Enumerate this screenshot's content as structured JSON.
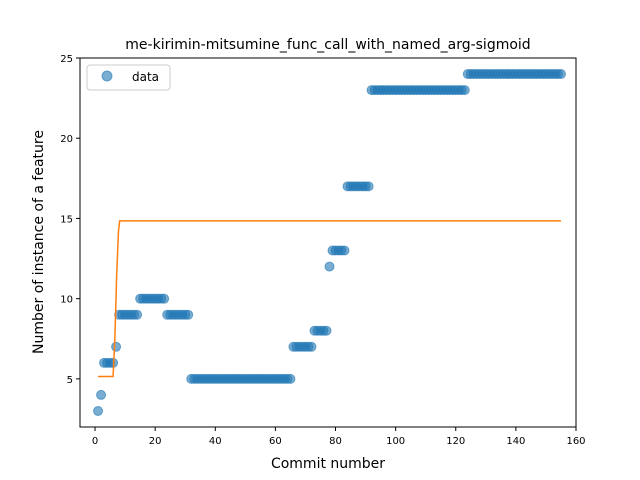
{
  "chart_data": {
    "type": "scatter",
    "title": "me-kirimin-mitsumine_func_call_with_named_arg-sigmoid",
    "xlabel": "Commit number",
    "ylabel": "Number of instance of a feature",
    "xlim": [
      -5,
      160
    ],
    "ylim": [
      2,
      25
    ],
    "xticks": [
      0,
      20,
      40,
      60,
      80,
      100,
      120,
      140,
      160
    ],
    "yticks": [
      5,
      10,
      15,
      20,
      25
    ],
    "grid": false,
    "legend": {
      "position": "top-left",
      "entries": [
        "data"
      ]
    },
    "colors": {
      "scatter": "#1f77b4",
      "fit": "#ff7f0e"
    },
    "series": [
      {
        "name": "data",
        "kind": "scatter",
        "segments": [
          {
            "x_start": 1,
            "x_end": 1,
            "y": 3
          },
          {
            "x_start": 2,
            "x_end": 2,
            "y": 4
          },
          {
            "x_start": 3,
            "x_end": 6,
            "y": 6
          },
          {
            "x_start": 7,
            "x_end": 7,
            "y": 7
          },
          {
            "x_start": 8,
            "x_end": 14,
            "y": 9
          },
          {
            "x_start": 15,
            "x_end": 23,
            "y": 10
          },
          {
            "x_start": 24,
            "x_end": 31,
            "y": 9
          },
          {
            "x_start": 32,
            "x_end": 65,
            "y": 5
          },
          {
            "x_start": 66,
            "x_end": 72,
            "y": 7
          },
          {
            "x_start": 73,
            "x_end": 77,
            "y": 8
          },
          {
            "x_start": 78,
            "x_end": 78,
            "y": 12
          },
          {
            "x_start": 79,
            "x_end": 83,
            "y": 13
          },
          {
            "x_start": 84,
            "x_end": 91,
            "y": 17
          },
          {
            "x_start": 92,
            "x_end": 123,
            "y": 23
          },
          {
            "x_start": 124,
            "x_end": 155,
            "y": 24
          }
        ]
      },
      {
        "name": "",
        "kind": "line",
        "x": [
          1,
          6,
          6.6,
          7.2,
          7.8,
          8.2,
          155
        ],
        "y": [
          5.15,
          5.15,
          7.5,
          11.5,
          14.2,
          14.85,
          14.85
        ]
      }
    ]
  }
}
